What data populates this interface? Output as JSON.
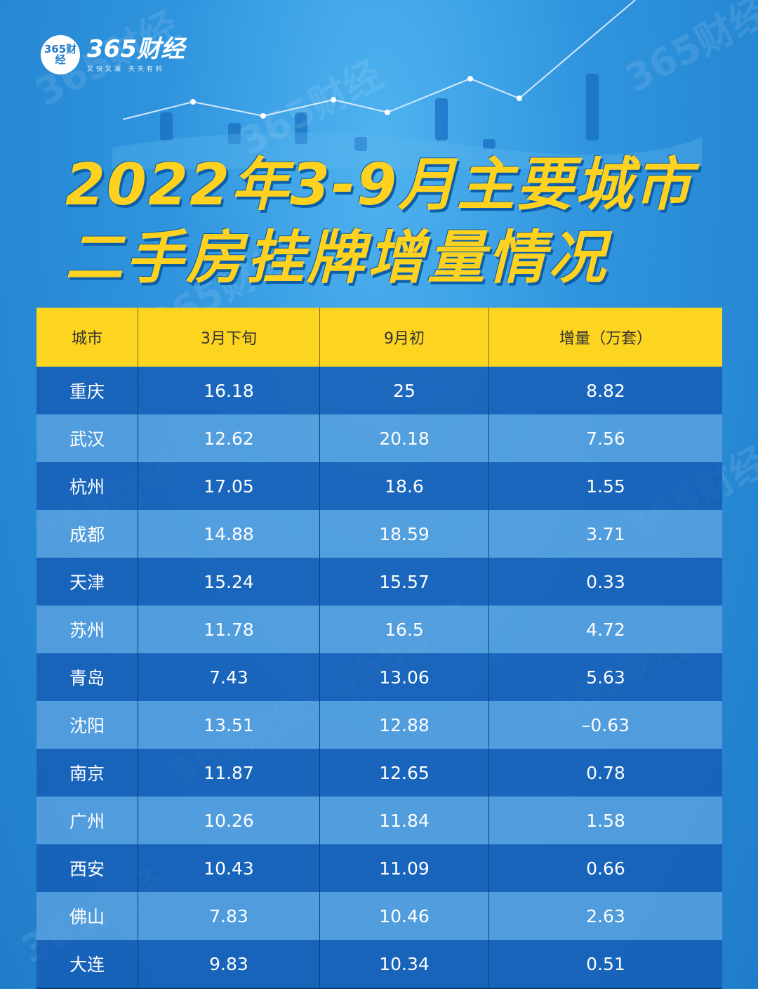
{
  "brand": {
    "logo_badge": "365财经",
    "name": "365财经",
    "slogan": "又快又准 天天有料"
  },
  "watermark_text": "365财经",
  "title": {
    "line1": "2022年3-9月主要城市",
    "line2": "二手房挂牌增量情况"
  },
  "table": {
    "headers": [
      "城市",
      "3月下旬",
      "9月初",
      "增量（万套）"
    ],
    "rows": [
      [
        "重庆",
        "16.18",
        "25",
        "8.82"
      ],
      [
        "武汉",
        "12.62",
        "20.18",
        "7.56"
      ],
      [
        "杭州",
        "17.05",
        "18.6",
        "1.55"
      ],
      [
        "成都",
        "14.88",
        "18.59",
        "3.71"
      ],
      [
        "天津",
        "15.24",
        "15.57",
        "0.33"
      ],
      [
        "苏州",
        "11.78",
        "16.5",
        "4.72"
      ],
      [
        "青岛",
        "7.43",
        "13.06",
        "5.63"
      ],
      [
        "沈阳",
        "13.51",
        "12.88",
        "–0.63"
      ],
      [
        "南京",
        "11.87",
        "12.65",
        "0.78"
      ],
      [
        "广州",
        "10.26",
        "11.84",
        "1.58"
      ],
      [
        "西安",
        "10.43",
        "11.09",
        "0.66"
      ],
      [
        "佛山",
        "7.83",
        "10.46",
        "2.63"
      ],
      [
        "大连",
        "9.83",
        "10.34",
        "0.51"
      ]
    ]
  },
  "colors": {
    "background": "#2f94de",
    "header_bg": "#fdd520",
    "title_text": "#ffd21f"
  }
}
